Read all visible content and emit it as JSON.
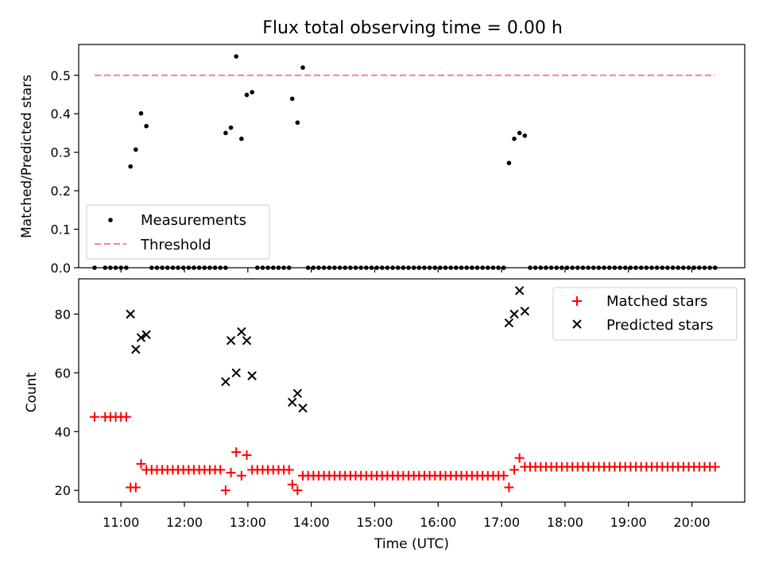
{
  "chart_data": [
    {
      "type": "scatter",
      "title": "Flux total observing time = 0.00 h",
      "ylabel": "Matched/Predicted stars",
      "xlim": [
        "10:20",
        "20:50"
      ],
      "ylim": [
        0,
        0.58
      ],
      "yticks": [
        "0.0",
        "0.1",
        "0.2",
        "0.3",
        "0.4",
        "0.5"
      ],
      "legend_position": "lower-left",
      "series": [
        {
          "name": "Measurements",
          "marker": "dot",
          "color": "#000000",
          "points": [
            [
              "10:35",
              0
            ],
            [
              "10:45",
              0
            ],
            [
              "10:50",
              0
            ],
            [
              "10:55",
              0
            ],
            [
              "11:00",
              0
            ],
            [
              "11:05",
              0
            ],
            [
              "11:09",
              0.263
            ],
            [
              "11:14",
              0.307
            ],
            [
              "11:19",
              0.401
            ],
            [
              "11:24",
              0.368
            ],
            [
              "11:29",
              0
            ],
            [
              "11:34",
              0
            ],
            [
              "11:39",
              0
            ],
            [
              "11:44",
              0
            ],
            [
              "11:49",
              0
            ],
            [
              "11:54",
              0
            ],
            [
              "11:59",
              0
            ],
            [
              "12:04",
              0
            ],
            [
              "12:09",
              0
            ],
            [
              "12:14",
              0
            ],
            [
              "12:19",
              0
            ],
            [
              "12:24",
              0
            ],
            [
              "12:29",
              0
            ],
            [
              "12:34",
              0
            ],
            [
              "12:39",
              0
            ],
            [
              "12:39",
              0.35
            ],
            [
              "12:44",
              0.364
            ],
            [
              "12:49",
              0.549
            ],
            [
              "12:54",
              0.335
            ],
            [
              "12:59",
              0.449
            ],
            [
              "13:04",
              0.456
            ],
            [
              "13:09",
              0
            ],
            [
              "13:14",
              0
            ],
            [
              "13:19",
              0
            ],
            [
              "13:24",
              0
            ],
            [
              "13:29",
              0
            ],
            [
              "13:34",
              0
            ],
            [
              "13:39",
              0
            ],
            [
              "13:42",
              0.439
            ],
            [
              "13:47",
              0.377
            ],
            [
              "13:52",
              0.52
            ],
            [
              "13:57",
              0
            ],
            [
              "14:02",
              0
            ],
            [
              "14:07",
              0
            ],
            [
              "14:12",
              0
            ],
            [
              "14:17",
              0
            ],
            [
              "14:22",
              0
            ],
            [
              "14:27",
              0
            ],
            [
              "14:32",
              0
            ],
            [
              "14:37",
              0
            ],
            [
              "14:42",
              0
            ],
            [
              "14:47",
              0
            ],
            [
              "14:52",
              0
            ],
            [
              "14:57",
              0
            ],
            [
              "15:02",
              0
            ],
            [
              "15:07",
              0
            ],
            [
              "15:12",
              0
            ],
            [
              "15:17",
              0
            ],
            [
              "15:22",
              0
            ],
            [
              "15:27",
              0
            ],
            [
              "15:32",
              0
            ],
            [
              "15:37",
              0
            ],
            [
              "15:42",
              0
            ],
            [
              "15:47",
              0
            ],
            [
              "15:52",
              0
            ],
            [
              "15:57",
              0
            ],
            [
              "16:02",
              0
            ],
            [
              "16:07",
              0
            ],
            [
              "16:12",
              0
            ],
            [
              "16:17",
              0
            ],
            [
              "16:22",
              0
            ],
            [
              "16:27",
              0
            ],
            [
              "16:32",
              0
            ],
            [
              "16:37",
              0
            ],
            [
              "16:42",
              0
            ],
            [
              "16:47",
              0
            ],
            [
              "16:52",
              0
            ],
            [
              "16:57",
              0
            ],
            [
              "17:02",
              0
            ],
            [
              "17:07",
              0.272
            ],
            [
              "17:12",
              0.335
            ],
            [
              "17:17",
              0.35
            ],
            [
              "17:22",
              0.343
            ],
            [
              "17:27",
              0
            ],
            [
              "17:32",
              0
            ],
            [
              "17:37",
              0
            ],
            [
              "17:42",
              0
            ],
            [
              "17:47",
              0
            ],
            [
              "17:52",
              0
            ],
            [
              "17:57",
              0
            ],
            [
              "18:02",
              0
            ],
            [
              "18:07",
              0
            ],
            [
              "18:12",
              0
            ],
            [
              "18:17",
              0
            ],
            [
              "18:22",
              0
            ],
            [
              "18:27",
              0
            ],
            [
              "18:32",
              0
            ],
            [
              "18:37",
              0
            ],
            [
              "18:42",
              0
            ],
            [
              "18:47",
              0
            ],
            [
              "18:52",
              0
            ],
            [
              "18:57",
              0
            ],
            [
              "19:02",
              0
            ],
            [
              "19:07",
              0
            ],
            [
              "19:12",
              0
            ],
            [
              "19:17",
              0
            ],
            [
              "19:22",
              0
            ],
            [
              "19:27",
              0
            ],
            [
              "19:32",
              0
            ],
            [
              "19:37",
              0
            ],
            [
              "19:42",
              0
            ],
            [
              "19:47",
              0
            ],
            [
              "19:52",
              0
            ],
            [
              "19:57",
              0
            ],
            [
              "20:02",
              0
            ],
            [
              "20:07",
              0
            ],
            [
              "20:12",
              0
            ],
            [
              "20:17",
              0
            ],
            [
              "20:22",
              0
            ]
          ]
        },
        {
          "name": "Threshold",
          "marker": "dashed-line",
          "color": "#ff8080",
          "points": [
            [
              "10:35",
              0.5
            ],
            [
              "20:22",
              0.5
            ]
          ]
        }
      ]
    },
    {
      "type": "scatter",
      "title": "",
      "xlabel": "Time (UTC)",
      "ylabel": "Count",
      "xlim": [
        "10:20",
        "20:50"
      ],
      "ylim": [
        16,
        92
      ],
      "yticks": [
        "20",
        "40",
        "60",
        "80"
      ],
      "xticks": [
        "11:00",
        "12:00",
        "13:00",
        "14:00",
        "15:00",
        "16:00",
        "17:00",
        "18:00",
        "19:00",
        "20:00"
      ],
      "legend_position": "top-right",
      "series": [
        {
          "name": "Matched stars",
          "marker": "plus",
          "color": "#ff0000",
          "points": [
            [
              "10:35",
              45
            ],
            [
              "10:45",
              45
            ],
            [
              "10:50",
              45
            ],
            [
              "10:55",
              45
            ],
            [
              "11:00",
              45
            ],
            [
              "11:05",
              45
            ],
            [
              "11:09",
              21
            ],
            [
              "11:14",
              21
            ],
            [
              "11:19",
              29
            ],
            [
              "11:24",
              27
            ],
            [
              "11:29",
              27
            ],
            [
              "11:34",
              27
            ],
            [
              "11:39",
              27
            ],
            [
              "11:44",
              27
            ],
            [
              "11:49",
              27
            ],
            [
              "11:54",
              27
            ],
            [
              "11:59",
              27
            ],
            [
              "12:04",
              27
            ],
            [
              "12:09",
              27
            ],
            [
              "12:14",
              27
            ],
            [
              "12:19",
              27
            ],
            [
              "12:24",
              27
            ],
            [
              "12:29",
              27
            ],
            [
              "12:34",
              27
            ],
            [
              "12:39",
              20
            ],
            [
              "12:44",
              26
            ],
            [
              "12:49",
              33
            ],
            [
              "12:54",
              25
            ],
            [
              "12:59",
              32
            ],
            [
              "13:04",
              27
            ],
            [
              "13:09",
              27
            ],
            [
              "13:14",
              27
            ],
            [
              "13:19",
              27
            ],
            [
              "13:24",
              27
            ],
            [
              "13:29",
              27
            ],
            [
              "13:34",
              27
            ],
            [
              "13:39",
              27
            ],
            [
              "13:42",
              22
            ],
            [
              "13:47",
              20
            ],
            [
              "13:52",
              25
            ],
            [
              "13:57",
              25
            ],
            [
              "14:02",
              25
            ],
            [
              "14:07",
              25
            ],
            [
              "14:12",
              25
            ],
            [
              "14:17",
              25
            ],
            [
              "14:22",
              25
            ],
            [
              "14:27",
              25
            ],
            [
              "14:32",
              25
            ],
            [
              "14:37",
              25
            ],
            [
              "14:42",
              25
            ],
            [
              "14:47",
              25
            ],
            [
              "14:52",
              25
            ],
            [
              "14:57",
              25
            ],
            [
              "15:02",
              25
            ],
            [
              "15:07",
              25
            ],
            [
              "15:12",
              25
            ],
            [
              "15:17",
              25
            ],
            [
              "15:22",
              25
            ],
            [
              "15:27",
              25
            ],
            [
              "15:32",
              25
            ],
            [
              "15:37",
              25
            ],
            [
              "15:42",
              25
            ],
            [
              "15:47",
              25
            ],
            [
              "15:52",
              25
            ],
            [
              "15:57",
              25
            ],
            [
              "16:02",
              25
            ],
            [
              "16:07",
              25
            ],
            [
              "16:12",
              25
            ],
            [
              "16:17",
              25
            ],
            [
              "16:22",
              25
            ],
            [
              "16:27",
              25
            ],
            [
              "16:32",
              25
            ],
            [
              "16:37",
              25
            ],
            [
              "16:42",
              25
            ],
            [
              "16:47",
              25
            ],
            [
              "16:52",
              25
            ],
            [
              "16:57",
              25
            ],
            [
              "17:02",
              25
            ],
            [
              "17:07",
              21
            ],
            [
              "17:12",
              27
            ],
            [
              "17:17",
              31
            ],
            [
              "17:22",
              28
            ],
            [
              "17:27",
              28
            ],
            [
              "17:32",
              28
            ],
            [
              "17:37",
              28
            ],
            [
              "17:42",
              28
            ],
            [
              "17:47",
              28
            ],
            [
              "17:52",
              28
            ],
            [
              "17:57",
              28
            ],
            [
              "18:02",
              28
            ],
            [
              "18:07",
              28
            ],
            [
              "18:12",
              28
            ],
            [
              "18:17",
              28
            ],
            [
              "18:22",
              28
            ],
            [
              "18:27",
              28
            ],
            [
              "18:32",
              28
            ],
            [
              "18:37",
              28
            ],
            [
              "18:42",
              28
            ],
            [
              "18:47",
              28
            ],
            [
              "18:52",
              28
            ],
            [
              "18:57",
              28
            ],
            [
              "19:02",
              28
            ],
            [
              "19:07",
              28
            ],
            [
              "19:12",
              28
            ],
            [
              "19:17",
              28
            ],
            [
              "19:22",
              28
            ],
            [
              "19:27",
              28
            ],
            [
              "19:32",
              28
            ],
            [
              "19:37",
              28
            ],
            [
              "19:42",
              28
            ],
            [
              "19:47",
              28
            ],
            [
              "19:52",
              28
            ],
            [
              "19:57",
              28
            ],
            [
              "20:02",
              28
            ],
            [
              "20:07",
              28
            ],
            [
              "20:12",
              28
            ],
            [
              "20:17",
              28
            ],
            [
              "20:22",
              28
            ]
          ]
        },
        {
          "name": "Predicted stars",
          "marker": "x",
          "color": "#000000",
          "points": [
            [
              "11:09",
              80
            ],
            [
              "11:14",
              68
            ],
            [
              "11:19",
              72
            ],
            [
              "11:24",
              73
            ],
            [
              "12:39",
              57
            ],
            [
              "12:44",
              71
            ],
            [
              "12:49",
              60
            ],
            [
              "12:54",
              74
            ],
            [
              "12:59",
              71
            ],
            [
              "13:04",
              59
            ],
            [
              "13:42",
              50
            ],
            [
              "13:47",
              53
            ],
            [
              "13:52",
              48
            ],
            [
              "17:07",
              77
            ],
            [
              "17:12",
              80
            ],
            [
              "17:17",
              88
            ],
            [
              "17:22",
              81
            ]
          ]
        }
      ]
    }
  ]
}
